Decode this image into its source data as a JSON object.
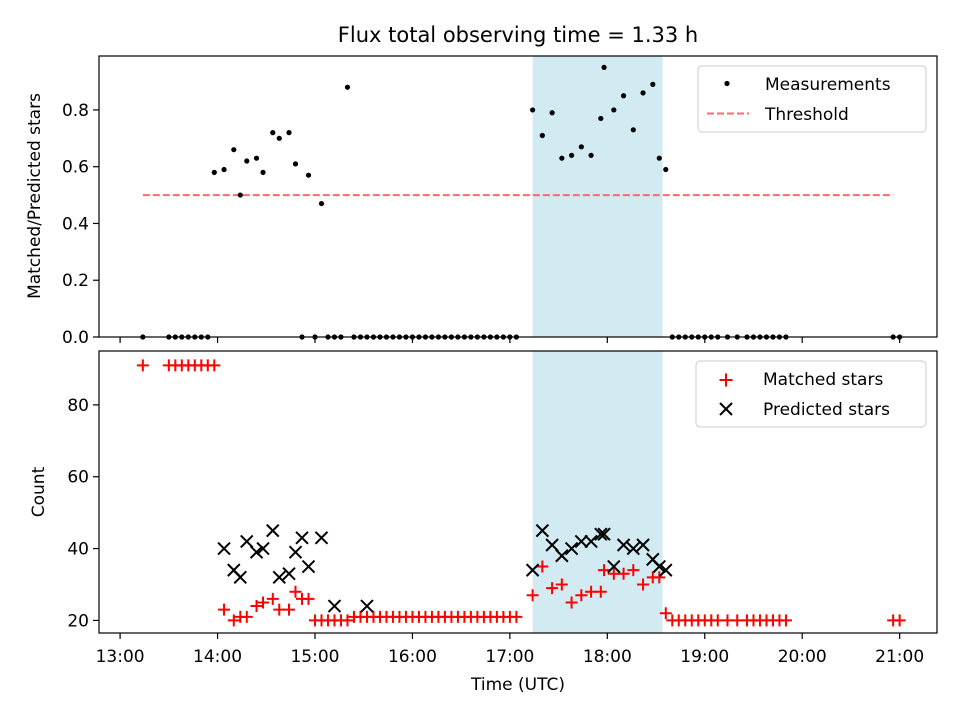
{
  "chart_data": [
    {
      "type": "scatter",
      "title": "Flux total observing time = 1.33 h",
      "ylabel": "Matched/Predicted stars",
      "xlim": [
        "12:47",
        "21:23"
      ],
      "ylim": [
        0,
        0.99
      ],
      "yticks": [
        "0.0",
        "0.2",
        "0.4",
        "0.6",
        "0.8"
      ],
      "ytick_values": [
        0,
        0.2,
        0.4,
        0.6,
        0.8
      ],
      "shaded_interval": {
        "start": "17:14",
        "end": "18:34",
        "color": "#add8e6"
      },
      "legend": {
        "placement": "top-right"
      },
      "threshold": {
        "name": "Threshold",
        "value": 0.5,
        "x": [
          "13:14",
          "20:56"
        ],
        "color": "#ff6a6a",
        "style": "dashed"
      },
      "series": [
        {
          "name": "Measurements",
          "color": "#000000",
          "marker": "dot",
          "x": [
            "13:14",
            "13:30",
            "13:34",
            "13:38",
            "13:42",
            "13:46",
            "13:50",
            "13:54",
            "13:58",
            "14:04",
            "14:10",
            "14:14",
            "14:18",
            "14:24",
            "14:28",
            "14:34",
            "14:38",
            "14:44",
            "14:48",
            "14:52",
            "14:56",
            "15:00",
            "15:04",
            "15:08",
            "15:12",
            "15:16",
            "15:20",
            "15:24",
            "15:28",
            "15:32",
            "15:36",
            "15:40",
            "15:44",
            "15:48",
            "15:52",
            "15:56",
            "16:00",
            "16:04",
            "16:08",
            "16:12",
            "16:16",
            "16:20",
            "16:24",
            "16:28",
            "16:32",
            "16:36",
            "16:40",
            "16:44",
            "16:48",
            "16:52",
            "16:56",
            "17:00",
            "17:04",
            "17:14",
            "17:20",
            "17:26",
            "17:32",
            "17:38",
            "17:44",
            "17:50",
            "17:56",
            "17:58",
            "18:04",
            "18:10",
            "18:16",
            "18:22",
            "18:28",
            "18:32",
            "18:36",
            "18:40",
            "18:44",
            "18:48",
            "18:52",
            "18:56",
            "19:00",
            "19:04",
            "19:08",
            "19:14",
            "19:20",
            "19:26",
            "19:30",
            "19:34",
            "19:38",
            "19:42",
            "19:46",
            "19:50",
            "20:56",
            "21:00"
          ],
          "y": [
            0.0,
            0.0,
            0.0,
            0.0,
            0.0,
            0.0,
            0.0,
            0.0,
            0.58,
            0.59,
            0.66,
            0.5,
            0.62,
            0.63,
            0.58,
            0.72,
            0.7,
            0.72,
            0.61,
            0.0,
            0.57,
            0.0,
            0.47,
            0.0,
            0.0,
            0.0,
            0.88,
            0.0,
            0.0,
            0.0,
            0.0,
            0.0,
            0.0,
            0.0,
            0.0,
            0.0,
            0.0,
            0.0,
            0.0,
            0.0,
            0.0,
            0.0,
            0.0,
            0.0,
            0.0,
            0.0,
            0.0,
            0.0,
            0.0,
            0.0,
            0.0,
            0.0,
            0.0,
            0.8,
            0.71,
            0.79,
            0.63,
            0.64,
            0.67,
            0.64,
            0.77,
            0.95,
            0.8,
            0.85,
            0.73,
            0.86,
            0.89,
            0.63,
            0.59,
            0.0,
            0.0,
            0.0,
            0.0,
            0.0,
            0.0,
            0.0,
            0.0,
            0.0,
            0.0,
            0.0,
            0.0,
            0.0,
            0.0,
            0.0,
            0.0,
            0.0,
            0.0,
            0.0
          ]
        }
      ]
    },
    {
      "type": "scatter",
      "xlabel": "Time (UTC)",
      "ylabel": "Count",
      "xlim": [
        "12:47",
        "21:23"
      ],
      "ylim": [
        16.5,
        95
      ],
      "xticks": [
        "13:00",
        "14:00",
        "15:00",
        "16:00",
        "17:00",
        "18:00",
        "19:00",
        "20:00",
        "21:00"
      ],
      "yticks": [
        "20",
        "40",
        "60",
        "80"
      ],
      "ytick_values": [
        20,
        40,
        60,
        80
      ],
      "shaded_interval": {
        "start": "17:14",
        "end": "18:34",
        "color": "#add8e6"
      },
      "legend": {
        "placement": "top-right"
      },
      "series": [
        {
          "name": "Matched stars",
          "color": "#ff0000",
          "marker": "plus",
          "x": [
            "13:14",
            "13:30",
            "13:34",
            "13:38",
            "13:42",
            "13:46",
            "13:50",
            "13:54",
            "13:58",
            "14:04",
            "14:10",
            "14:14",
            "14:18",
            "14:24",
            "14:28",
            "14:34",
            "14:38",
            "14:44",
            "14:48",
            "14:52",
            "14:56",
            "15:00",
            "15:04",
            "15:08",
            "15:12",
            "15:16",
            "15:20",
            "15:24",
            "15:28",
            "15:32",
            "15:36",
            "15:40",
            "15:44",
            "15:48",
            "15:52",
            "15:56",
            "16:00",
            "16:04",
            "16:08",
            "16:12",
            "16:16",
            "16:20",
            "16:24",
            "16:28",
            "16:32",
            "16:36",
            "16:40",
            "16:44",
            "16:48",
            "16:52",
            "16:56",
            "17:00",
            "17:04",
            "17:14",
            "17:20",
            "17:26",
            "17:32",
            "17:38",
            "17:44",
            "17:50",
            "17:56",
            "17:58",
            "18:04",
            "18:10",
            "18:16",
            "18:22",
            "18:28",
            "18:32",
            "18:36",
            "18:40",
            "18:44",
            "18:48",
            "18:52",
            "18:56",
            "19:00",
            "19:04",
            "19:08",
            "19:14",
            "19:20",
            "19:26",
            "19:30",
            "19:34",
            "19:38",
            "19:42",
            "19:46",
            "19:50",
            "20:56",
            "21:00"
          ],
          "y": [
            91,
            91,
            91,
            91,
            91,
            91,
            91,
            91,
            91,
            23,
            20,
            21,
            21,
            24,
            25,
            26,
            23,
            23,
            28,
            26,
            26,
            20,
            20,
            20,
            20,
            20,
            20,
            21,
            21,
            21,
            21,
            21,
            21,
            21,
            21,
            21,
            21,
            21,
            21,
            21,
            21,
            21,
            21,
            21,
            21,
            21,
            21,
            21,
            21,
            21,
            21,
            21,
            21,
            27,
            35,
            29,
            30,
            25,
            27,
            28,
            28,
            34,
            33,
            33,
            34,
            30,
            32,
            32,
            22,
            20,
            20,
            20,
            20,
            20,
            20,
            20,
            20,
            20,
            20,
            20,
            20,
            20,
            20,
            20,
            20,
            20,
            20,
            20
          ]
        },
        {
          "name": "Predicted stars",
          "color": "#000000",
          "marker": "x",
          "x": [
            "14:04",
            "14:10",
            "14:14",
            "14:18",
            "14:24",
            "14:28",
            "14:34",
            "14:38",
            "14:44",
            "14:48",
            "14:52",
            "14:56",
            "15:04",
            "15:12",
            "15:32",
            "17:14",
            "17:20",
            "17:26",
            "17:32",
            "17:38",
            "17:44",
            "17:50",
            "17:56",
            "17:58",
            "18:04",
            "18:10",
            "18:16",
            "18:22",
            "18:28",
            "18:32",
            "18:36"
          ],
          "y": [
            40,
            34,
            32,
            42,
            39,
            40,
            45,
            32,
            33,
            39,
            43,
            35,
            43,
            24,
            24,
            34,
            45,
            41,
            38,
            40,
            42,
            42,
            44,
            44,
            35,
            41,
            40,
            41,
            37,
            35,
            34
          ]
        }
      ]
    }
  ]
}
